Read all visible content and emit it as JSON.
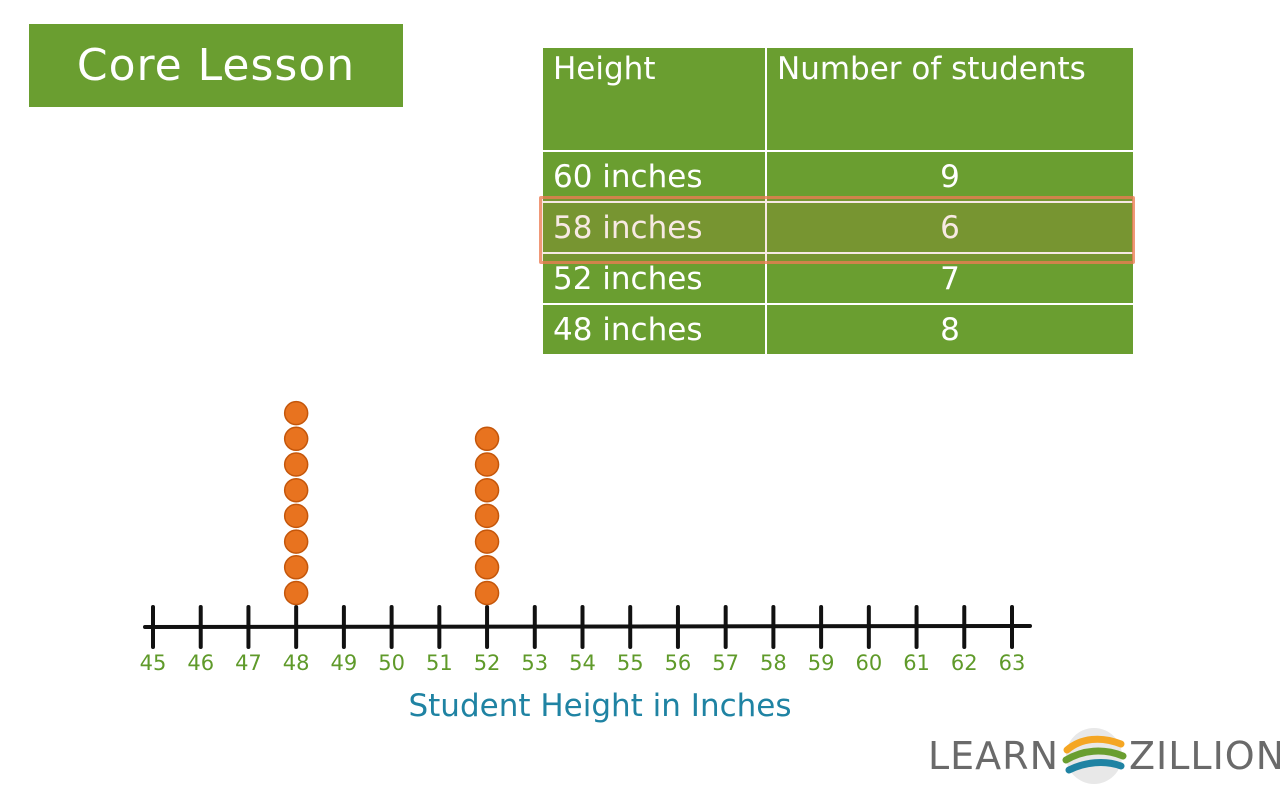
{
  "header": {
    "badge_label": "Core Lesson"
  },
  "table": {
    "headers": [
      "Height",
      "Number of students"
    ],
    "rows": [
      {
        "height": "60 inches",
        "count": "9"
      },
      {
        "height": "58 inches",
        "count": "6"
      },
      {
        "height": "52 inches",
        "count": "7"
      },
      {
        "height": "48 inches",
        "count": "8"
      }
    ],
    "highlighted_row": 1
  },
  "chart_data": {
    "type": "scatter",
    "subtype": "dot-plot",
    "xlabel": "Student Height in Inches",
    "xlim": [
      45,
      63
    ],
    "ticks": [
      45,
      46,
      47,
      48,
      49,
      50,
      51,
      52,
      53,
      54,
      55,
      56,
      57,
      58,
      59,
      60,
      61,
      62,
      63
    ],
    "dot_counts": [
      {
        "x": 48,
        "count": 8
      },
      {
        "x": 52,
        "count": 7
      }
    ]
  },
  "brand": {
    "left": "LEARN",
    "right": "ZILLION"
  },
  "colors": {
    "green": "#6a9e30",
    "dot_fill": "#e8731f",
    "dot_stroke": "#c4560a",
    "tick_label": "#5f9a2a",
    "axis_title": "#1f83a3",
    "highlight": "#ee7e54"
  }
}
